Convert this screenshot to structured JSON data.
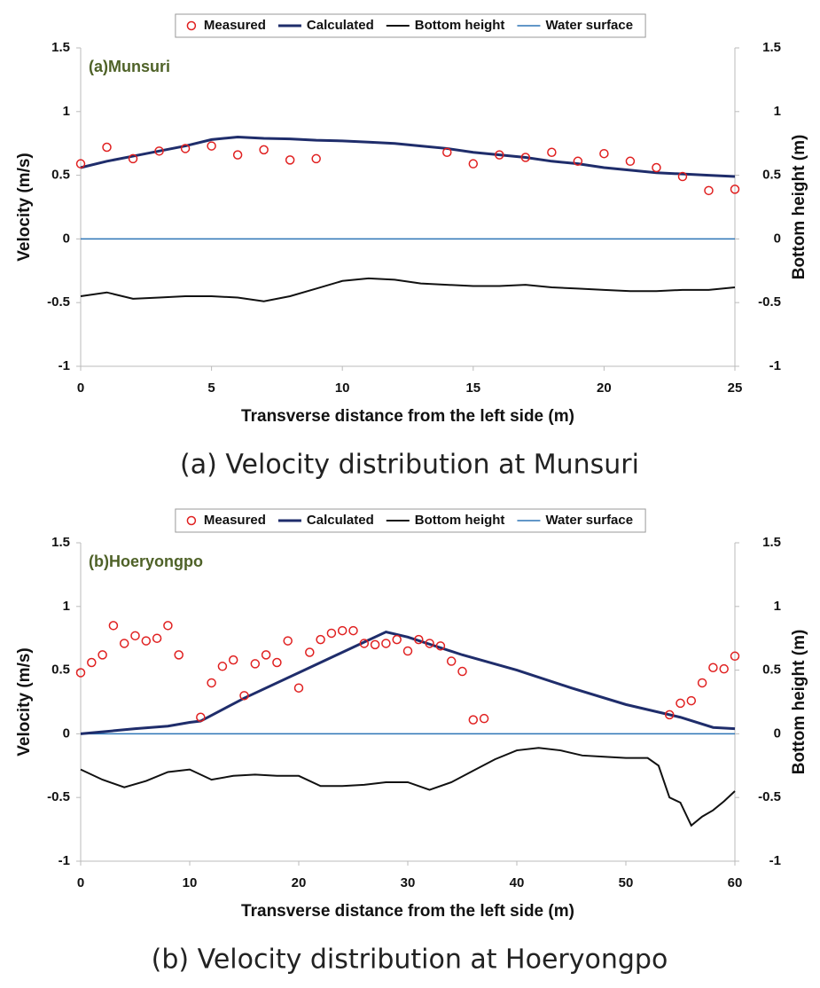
{
  "chart_data": [
    {
      "type": "line",
      "annotation": "(a)Munsuri",
      "caption": "(a) Velocity distribution at Munsuri",
      "x_label": "Transverse distance from the left side (m)",
      "y_label": "Velocity (m/s)",
      "y2_label": "Bottom height (m)",
      "xlim": [
        0,
        25
      ],
      "xticks": [
        0,
        5,
        10,
        15,
        20,
        25
      ],
      "ylim": [
        -1,
        1.5
      ],
      "yticks": [
        -1,
        -0.5,
        0,
        0.5,
        1,
        1.5
      ],
      "y2lim": [
        -1,
        1.5
      ],
      "y2ticks": [
        -1,
        -0.5,
        0,
        0.5,
        1,
        1.5
      ],
      "series": [
        {
          "name": "Measured",
          "color": "#e02020",
          "marker": true,
          "x": [
            0,
            1,
            2,
            3,
            4,
            5,
            6,
            7,
            8,
            9,
            14,
            15,
            16,
            17,
            18,
            19,
            20,
            21,
            22,
            23,
            24,
            25
          ],
          "values": [
            0.59,
            0.72,
            0.63,
            0.69,
            0.71,
            0.73,
            0.66,
            0.7,
            0.62,
            0.63,
            0.68,
            0.59,
            0.66,
            0.64,
            0.68,
            0.61,
            0.67,
            0.61,
            0.56,
            0.49,
            0.38,
            0.39
          ]
        },
        {
          "name": "Calculated",
          "color": "#1f2d6b",
          "x": [
            0,
            1,
            2,
            3,
            4,
            5,
            6,
            7,
            8,
            9,
            10,
            11,
            12,
            13,
            14,
            15,
            16,
            17,
            18,
            19,
            20,
            21,
            22,
            23,
            24,
            25
          ],
          "values": [
            0.56,
            0.61,
            0.65,
            0.69,
            0.73,
            0.78,
            0.8,
            0.79,
            0.785,
            0.775,
            0.77,
            0.76,
            0.75,
            0.73,
            0.71,
            0.68,
            0.66,
            0.64,
            0.61,
            0.59,
            0.56,
            0.54,
            0.52,
            0.51,
            0.5,
            0.49
          ]
        },
        {
          "name": "Bottom height",
          "color": "#111111",
          "axis": "y2",
          "x": [
            0,
            1,
            2,
            3,
            4,
            5,
            6,
            7,
            8,
            9,
            10,
            11,
            12,
            13,
            14,
            15,
            16,
            17,
            18,
            19,
            20,
            21,
            22,
            23,
            24,
            25
          ],
          "values": [
            -0.45,
            -0.42,
            -0.47,
            -0.46,
            -0.45,
            -0.45,
            -0.46,
            -0.49,
            -0.45,
            -0.39,
            -0.33,
            -0.31,
            -0.32,
            -0.35,
            -0.36,
            -0.37,
            -0.37,
            -0.36,
            -0.38,
            -0.39,
            -0.4,
            -0.41,
            -0.41,
            -0.4,
            -0.4,
            -0.38
          ]
        },
        {
          "name": "Water surface",
          "color": "#2e75b6",
          "x": [
            0,
            25
          ],
          "values": [
            0,
            0
          ]
        }
      ]
    },
    {
      "type": "line",
      "annotation": "(b)Hoeryongpo",
      "caption": "(b) Velocity distribution at Hoeryongpo",
      "x_label": "Transverse distance from the left side (m)",
      "y_label": "Velocity (m/s)",
      "y2_label": "Bottom height (m)",
      "xlim": [
        0,
        60
      ],
      "xticks": [
        0,
        10,
        20,
        30,
        40,
        50,
        60
      ],
      "ylim": [
        -1,
        1.5
      ],
      "yticks": [
        -1,
        -0.5,
        0,
        0.5,
        1,
        1.5
      ],
      "y2lim": [
        -1,
        1.5
      ],
      "y2ticks": [
        -1,
        -0.5,
        0,
        0.5,
        1,
        1.5
      ],
      "series": [
        {
          "name": "Measured",
          "color": "#e02020",
          "marker": true,
          "x": [
            0,
            1,
            2,
            3,
            4,
            5,
            6,
            7,
            8,
            9,
            11,
            12,
            13,
            14,
            15,
            16,
            17,
            18,
            19,
            20,
            21,
            22,
            23,
            24,
            25,
            26,
            27,
            28,
            29,
            30,
            31,
            32,
            33,
            34,
            35,
            36,
            37,
            54,
            55,
            56,
            57,
            58,
            59,
            60
          ],
          "values": [
            0.48,
            0.56,
            0.62,
            0.85,
            0.71,
            0.77,
            0.73,
            0.75,
            0.85,
            0.62,
            0.13,
            0.4,
            0.53,
            0.58,
            0.3,
            0.55,
            0.62,
            0.56,
            0.73,
            0.36,
            0.64,
            0.74,
            0.79,
            0.81,
            0.81,
            0.71,
            0.7,
            0.71,
            0.74,
            0.65,
            0.74,
            0.71,
            0.69,
            0.57,
            0.49,
            0.11,
            0.12,
            0.15,
            0.24,
            0.26,
            0.4,
            0.52,
            0.51,
            0.61
          ]
        },
        {
          "name": "Calculated",
          "color": "#1f2d6b",
          "x": [
            0,
            5,
            8,
            10,
            11,
            15,
            20,
            25,
            28,
            30,
            35,
            40,
            45,
            50,
            55,
            58,
            60
          ],
          "values": [
            0,
            0.04,
            0.06,
            0.09,
            0.1,
            0.28,
            0.48,
            0.68,
            0.8,
            0.76,
            0.62,
            0.5,
            0.36,
            0.23,
            0.13,
            0.05,
            0.04
          ]
        },
        {
          "name": "Bottom height",
          "color": "#111111",
          "axis": "y2",
          "x": [
            0,
            2,
            4,
            6,
            8,
            10,
            12,
            14,
            16,
            18,
            20,
            22,
            24,
            26,
            28,
            30,
            32,
            34,
            36,
            38,
            40,
            42,
            44,
            46,
            48,
            50,
            52,
            53,
            54,
            55,
            56,
            57,
            58,
            59,
            60
          ],
          "values": [
            -0.28,
            -0.36,
            -0.42,
            -0.37,
            -0.3,
            -0.28,
            -0.36,
            -0.33,
            -0.32,
            -0.33,
            -0.33,
            -0.41,
            -0.41,
            -0.4,
            -0.38,
            -0.38,
            -0.44,
            -0.38,
            -0.29,
            -0.2,
            -0.13,
            -0.11,
            -0.13,
            -0.17,
            -0.18,
            -0.19,
            -0.19,
            -0.25,
            -0.5,
            -0.54,
            -0.72,
            -0.65,
            -0.6,
            -0.53,
            -0.45
          ]
        },
        {
          "name": "Water surface",
          "color": "#2e75b6",
          "x": [
            0,
            60
          ],
          "values": [
            0,
            0
          ]
        }
      ]
    }
  ]
}
